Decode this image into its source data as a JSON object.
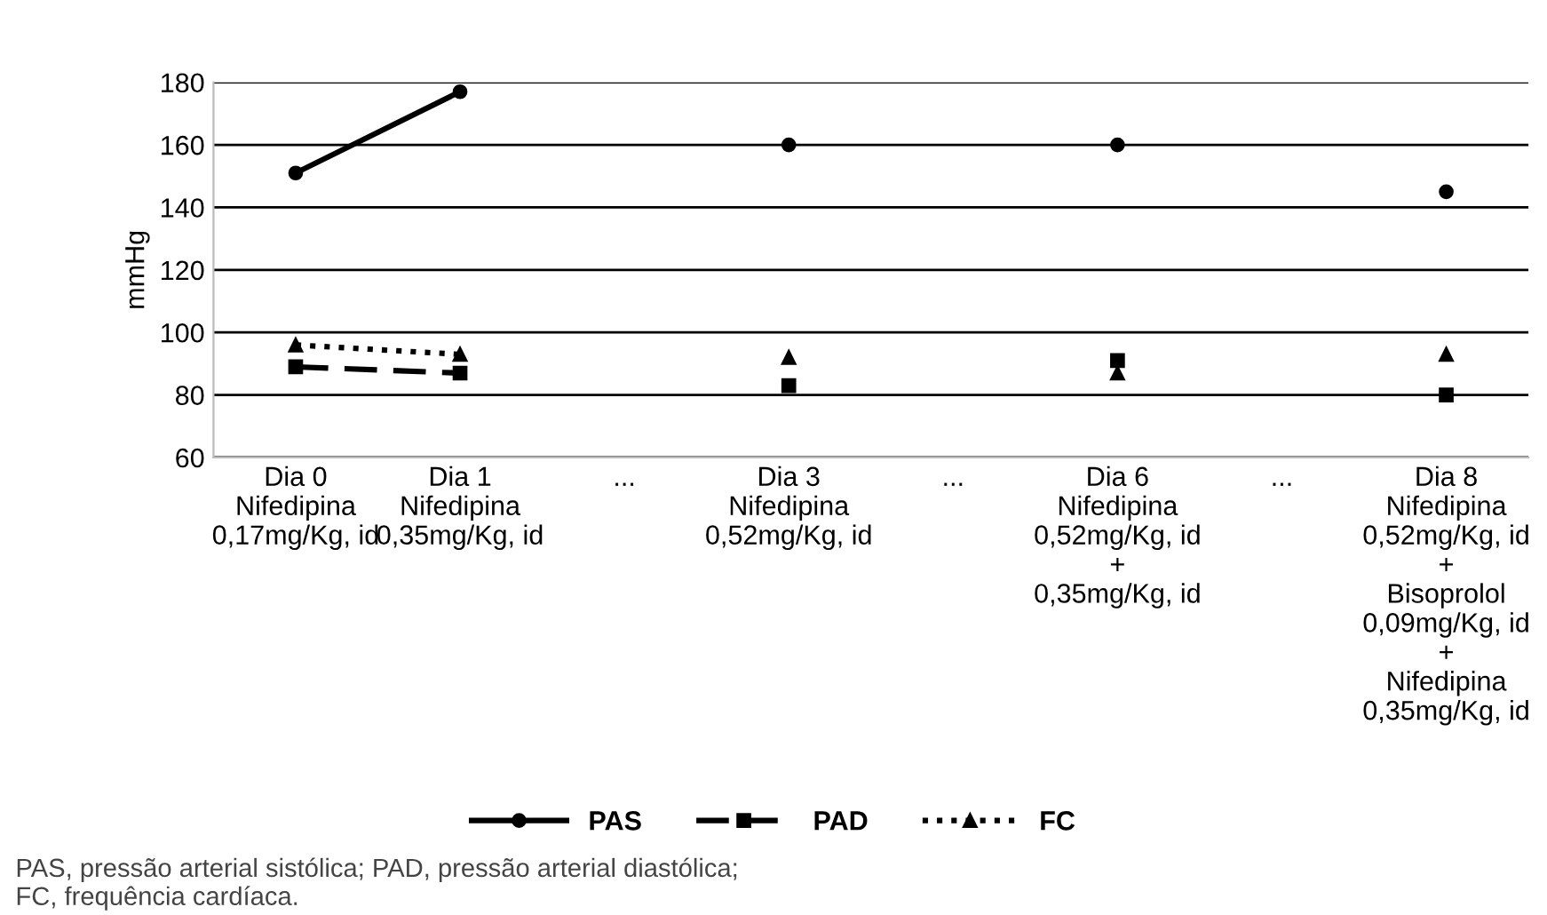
{
  "chart_data": {
    "type": "line",
    "ylabel": "mmHg",
    "categories": [
      "Dia 0\nNifedipina\n0,17mg/Kg, id",
      "Dia 1\nNifedipina\n0,35mg/Kg, id",
      "...",
      "Dia 3\nNifedipina\n0,52mg/Kg, id",
      "...",
      "Dia 6\nNifedipina\n0,52mg/Kg, id\n+\n0,35mg/Kg, id",
      "...",
      "Dia 8\nNifedipina\n0,52mg/Kg, id\n+\nBisoprolol\n0,09mg/Kg, id\n+\nNifedipina\n0,35mg/Kg, id"
    ],
    "series": [
      {
        "name": "PAS",
        "color": "#000000",
        "marker": "circle",
        "line_style": "solid",
        "values": [
          151,
          177,
          null,
          160,
          null,
          160,
          null,
          145
        ]
      },
      {
        "name": "PAD",
        "color": "#000000",
        "marker": "square",
        "line_style": "dashed",
        "values": [
          89,
          87,
          null,
          83,
          null,
          91,
          null,
          80
        ]
      },
      {
        "name": "FC",
        "color": "#000000",
        "marker": "triangle",
        "line_style": "dotted",
        "values": [
          96,
          93,
          null,
          92,
          null,
          87,
          null,
          93
        ]
      }
    ],
    "ylim": [
      60,
      180
    ],
    "yticks": [
      60,
      80,
      100,
      120,
      140,
      160,
      180
    ],
    "grid": "y",
    "legend": "bottom",
    "annotations": [
      "PAS, pressão arterial sistólica; PAD, pressão arterial diastólica;\nFC, frequência cardíaca."
    ]
  }
}
